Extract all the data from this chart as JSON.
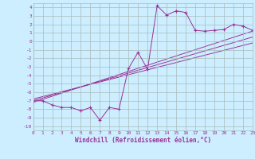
{
  "xlabel": "Windchill (Refroidissement éolien,°C)",
  "scatter_x": [
    0,
    1,
    2,
    3,
    4,
    5,
    6,
    7,
    8,
    9,
    10,
    11,
    12,
    13,
    14,
    15,
    16,
    17,
    18,
    19,
    20,
    21,
    22,
    23
  ],
  "scatter_y": [
    -7.0,
    -7.0,
    -7.5,
    -7.8,
    -7.8,
    -8.2,
    -7.8,
    -9.3,
    -7.8,
    -8.0,
    -3.2,
    -1.3,
    -3.3,
    4.2,
    3.1,
    3.6,
    3.4,
    1.3,
    1.2,
    1.3,
    1.4,
    2.0,
    1.8,
    1.3
  ],
  "line1_x": [
    0,
    23
  ],
  "line1_y": [
    -7.2,
    1.2
  ],
  "line2_x": [
    0,
    23
  ],
  "line2_y": [
    -6.8,
    -0.2
  ],
  "line3_x": [
    0,
    23
  ],
  "line3_y": [
    -7.0,
    0.5
  ],
  "color": "#993399",
  "bg_color": "#cceeff",
  "grid_color": "#aabbbb",
  "xlim": [
    0,
    23
  ],
  "ylim": [
    -10.5,
    4.5
  ],
  "yticks": [
    4,
    3,
    2,
    1,
    0,
    -1,
    -2,
    -3,
    -4,
    -5,
    -6,
    -7,
    -8,
    -9,
    -10
  ],
  "xticks": [
    0,
    1,
    2,
    3,
    4,
    5,
    6,
    7,
    8,
    9,
    10,
    11,
    12,
    13,
    14,
    15,
    16,
    17,
    18,
    19,
    20,
    21,
    22,
    23
  ],
  "tick_fontsize": 4.5,
  "xlabel_fontsize": 5.5
}
